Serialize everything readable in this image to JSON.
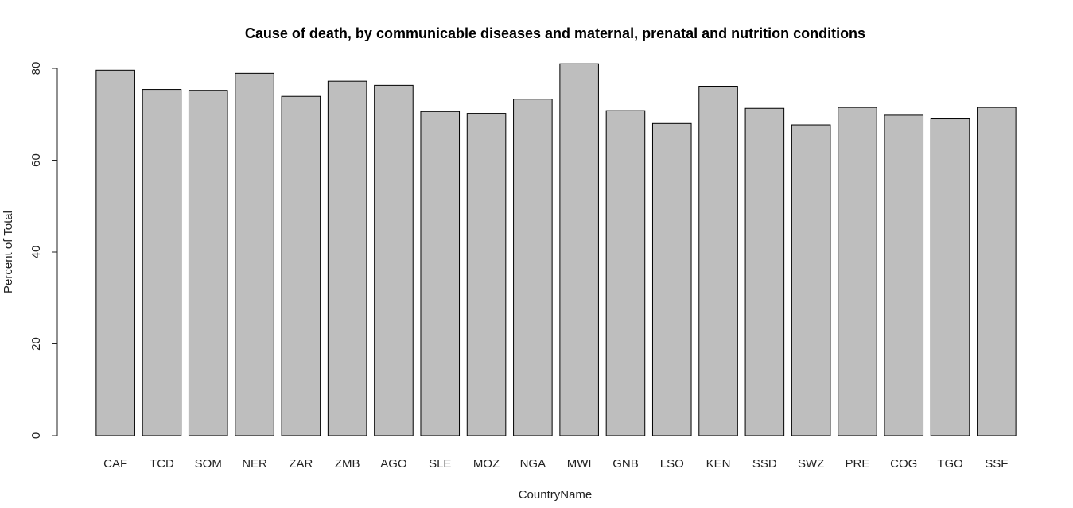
{
  "chart_data": {
    "type": "bar",
    "title": "Cause of death, by communicable diseases and maternal, prenatal and nutrition conditions",
    "xlabel": "CountryName",
    "ylabel": "Percent of Total",
    "ylim": [
      0,
      80
    ],
    "yticks": [
      0,
      20,
      40,
      60,
      80
    ],
    "bar_color": "#bebebe",
    "grid": false,
    "categories": [
      "CAF",
      "TCD",
      "SOM",
      "NER",
      "ZAR",
      "ZMB",
      "AGO",
      "SLE",
      "MOZ",
      "NGA",
      "MWI",
      "GNB",
      "LSO",
      "KEN",
      "SSD",
      "SWZ",
      "PRE",
      "COG",
      "TGO",
      "SSF"
    ],
    "values": [
      79.6,
      75.4,
      75.2,
      78.9,
      73.9,
      77.2,
      76.3,
      70.6,
      70.2,
      73.3,
      81.0,
      70.8,
      68.0,
      76.1,
      71.3,
      67.7,
      71.5,
      69.8,
      69.0,
      71.5
    ]
  }
}
